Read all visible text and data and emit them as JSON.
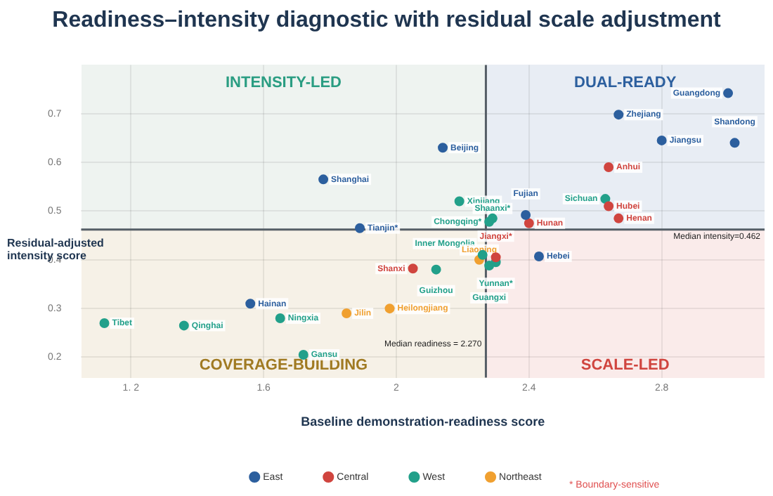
{
  "chart_data": {
    "type": "scatter",
    "title": "Readiness–intensity diagnostic with residual scale adjustment",
    "xlabel": "Baseline demonstration-readiness score",
    "ylabel": "Residual-adjusted intensity score",
    "xlim": [
      1.05,
      3.11
    ],
    "xticks": [
      {
        "value": 1.2,
        "label": "1. 2"
      },
      1.6,
      2.0,
      2.4,
      2.8
    ],
    "ylim": [
      0.158,
      0.8
    ],
    "yticks": [
      0.2,
      0.3,
      0.4,
      0.5,
      0.6,
      0.7
    ],
    "grid": true,
    "legend": "bottom",
    "marker": "circle",
    "series": [
      {
        "name": "East",
        "color": "#2c5f9e",
        "x": [
          3.0,
          2.67,
          2.8,
          3.02,
          2.14,
          1.78,
          2.39,
          1.89,
          2.43,
          1.56
        ],
        "values": [
          0.742,
          0.698,
          0.645,
          0.64,
          0.63,
          0.565,
          0.492,
          0.465,
          0.407,
          0.31
        ],
        "value_labels": [
          "Guangdong",
          "Zhejiang",
          "Jiangsu",
          "Shandong",
          "Beijing",
          "Shanghai",
          "Fujian",
          "Tianjin*",
          "Hebei",
          "Hainan"
        ]
      },
      {
        "name": "Central",
        "color": "#d0453f",
        "x": [
          2.64,
          2.64,
          2.67,
          2.4,
          2.3,
          2.05
        ],
        "values": [
          0.59,
          0.51,
          0.485,
          0.475,
          0.405,
          0.382
        ],
        "value_labels": [
          "Anhui",
          "Hubei",
          "Henan",
          "Hunan",
          "Jiangxi*",
          "Shanxi"
        ]
      },
      {
        "name": "West",
        "color": "#22a08a",
        "x": [
          2.63,
          2.19,
          2.29,
          2.28,
          2.26,
          2.3,
          2.28,
          2.12,
          1.65,
          1.36,
          1.12,
          1.72
        ],
        "values": [
          0.525,
          0.52,
          0.485,
          0.478,
          0.41,
          0.395,
          0.388,
          0.38,
          0.28,
          0.265,
          0.27,
          0.205
        ],
        "value_labels": [
          "Sichuan",
          "Xinjiang",
          "Shaanxi*",
          "Chongqing*",
          "Inner Mongolia",
          "Yunnan*",
          "Guangxi",
          "Guizhou",
          "Ningxia",
          "Qinghai",
          "Tibet",
          "Gansu"
        ]
      },
      {
        "name": "Northeast",
        "color": "#f0a030",
        "x": [
          2.25,
          1.98,
          1.85
        ],
        "values": [
          0.4,
          0.3,
          0.29
        ],
        "value_labels": [
          "Liaoning",
          "Heilongjiang",
          "Jilin"
        ]
      }
    ],
    "ref_lines": [
      {
        "axis": "x",
        "value": 2.27,
        "label": "Median readiness = 2.270",
        "color": "#555e66"
      },
      {
        "axis": "y",
        "value": 0.462,
        "label": "Median intensity=0.462",
        "color": "#555e66"
      }
    ],
    "annotations": [
      "INTENSITY-LED",
      "DUAL-READY",
      "COVERAGE-BUILDING",
      "SCALE-LED",
      "* Boundary-sensitive"
    ]
  }
}
